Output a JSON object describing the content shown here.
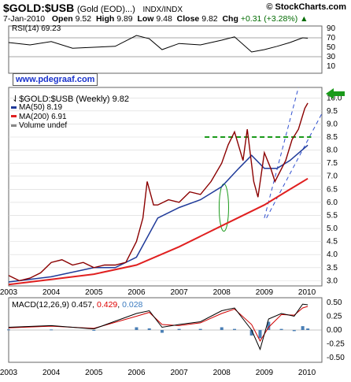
{
  "header": {
    "symbol": "$GOLD:$USB",
    "name": "(Gold (EOD)...)",
    "exchange": "INDX/INDX",
    "brand": "© StockCharts.com",
    "date": "7-Jan-2010",
    "open_label": "Open",
    "open": "9.52",
    "high_label": "High",
    "high": "9.89",
    "low_label": "Low",
    "low": "9.48",
    "close_label": "Close",
    "close": "9.82",
    "chg_label": "Chg",
    "chg": "+0.31 (+3.28%)",
    "chg_arrow": "▲"
  },
  "url": "www.pdegraaf.com",
  "colors": {
    "price": "#8b0000",
    "ma50": "#1f3a99",
    "ma200": "#e02020",
    "support": "#1a9a1a",
    "trend": "#3050d0",
    "macd": "#000000",
    "signal": "#d00000",
    "hist": "#4a7fb5",
    "arrow": "#1a9a1a",
    "axis": "#444444",
    "grid": "#d8d8d8"
  },
  "rsi": {
    "label": "RSI(14) 69.23",
    "levels": [
      90,
      70,
      50,
      30,
      10
    ]
  },
  "main": {
    "label": "$GOLD:$USB (Weekly) 9.82",
    "legend": [
      {
        "label": "MA(50) 8.19",
        "color": "#1f3a99"
      },
      {
        "label": "MA(200) 6.91",
        "color": "#e02020"
      },
      {
        "label": "Volume undef",
        "color": "#888888"
      }
    ],
    "y_ticks": [
      "3.0",
      "3.5",
      "4.0",
      "4.5",
      "5.0",
      "5.5",
      "6.0",
      "6.5",
      "7.0",
      "7.5",
      "8.0",
      "8.5",
      "9.0",
      "9.5",
      "10.0"
    ]
  },
  "macd": {
    "label_name": "MACD(12,26,9)",
    "macd_value": "0.457",
    "signal_value": "0.429",
    "hist_value": "0.028",
    "y_ticks": [
      "0.50",
      "0.25",
      "0.00",
      "-0.25",
      "-0.50"
    ]
  },
  "x_labels": [
    "2003",
    "2004",
    "2005",
    "2006",
    "2007",
    "2008",
    "2009",
    "2010"
  ],
  "chart_data": {
    "type": "line",
    "series": [
      {
        "name": "$GOLD:$USB (Weekly)",
        "x": [
          2003.0,
          2003.25,
          2003.5,
          2003.75,
          2004.0,
          2004.25,
          2004.5,
          2004.75,
          2005.0,
          2005.25,
          2005.5,
          2005.75,
          2006.0,
          2006.15,
          2006.25,
          2006.4,
          2006.5,
          2006.75,
          2007.0,
          2007.25,
          2007.5,
          2007.75,
          2008.0,
          2008.15,
          2008.3,
          2008.5,
          2008.6,
          2008.75,
          2008.85,
          2009.0,
          2009.15,
          2009.25,
          2009.5,
          2009.65,
          2009.8,
          2009.95,
          2010.02
        ],
        "values": [
          3.2,
          3.0,
          3.1,
          3.3,
          3.7,
          3.8,
          3.6,
          3.7,
          3.5,
          3.6,
          3.6,
          3.7,
          4.5,
          5.4,
          6.8,
          5.9,
          5.9,
          6.1,
          6.0,
          6.4,
          6.3,
          6.8,
          7.5,
          8.2,
          8.7,
          7.6,
          8.8,
          6.8,
          6.2,
          7.9,
          7.3,
          6.8,
          7.6,
          8.4,
          8.8,
          9.6,
          9.8
        ]
      },
      {
        "name": "MA(50)",
        "x": [
          2003.0,
          2004.0,
          2005.0,
          2005.5,
          2006.0,
          2006.5,
          2007.0,
          2007.5,
          2008.0,
          2008.4,
          2008.7,
          2009.0,
          2009.3,
          2009.6,
          2010.02
        ],
        "values": [
          2.95,
          3.15,
          3.5,
          3.5,
          3.9,
          5.4,
          5.8,
          6.1,
          6.6,
          7.3,
          7.8,
          7.3,
          7.3,
          7.6,
          8.19
        ]
      },
      {
        "name": "MA(200)",
        "x": [
          2003.0,
          2004.0,
          2005.0,
          2006.0,
          2007.0,
          2008.0,
          2009.0,
          2009.5,
          2010.02
        ],
        "values": [
          2.85,
          3.05,
          3.25,
          3.6,
          4.3,
          5.1,
          5.9,
          6.4,
          6.91
        ]
      }
    ],
    "rsi": {
      "x": [
        2003.0,
        2003.5,
        2004.0,
        2004.5,
        2005.0,
        2005.5,
        2006.0,
        2006.3,
        2006.6,
        2007.0,
        2007.5,
        2008.0,
        2008.3,
        2008.7,
        2009.0,
        2009.3,
        2009.6,
        2009.9,
        2010.02
      ],
      "values": [
        60,
        55,
        62,
        48,
        50,
        52,
        75,
        68,
        45,
        58,
        55,
        65,
        72,
        40,
        45,
        52,
        60,
        70,
        69.23
      ]
    },
    "macd": {
      "x": [
        2003.0,
        2004.0,
        2005.0,
        2006.0,
        2006.3,
        2006.6,
        2007.0,
        2007.5,
        2008.0,
        2008.3,
        2008.7,
        2008.9,
        2009.1,
        2009.4,
        2009.7,
        2009.9,
        2010.02
      ],
      "macd": [
        0.05,
        0.08,
        0.02,
        0.3,
        0.35,
        0.05,
        0.1,
        0.15,
        0.35,
        0.4,
        0.0,
        -0.35,
        0.2,
        0.3,
        0.25,
        0.47,
        0.457
      ],
      "signal": [
        0.04,
        0.07,
        0.03,
        0.25,
        0.32,
        0.1,
        0.08,
        0.13,
        0.3,
        0.38,
        0.1,
        -0.2,
        0.05,
        0.28,
        0.27,
        0.4,
        0.429
      ]
    },
    "annotations": {
      "support_level": 8.5,
      "ellipse_center": {
        "x": 2008.05,
        "y": 5.8
      }
    },
    "ylim": [
      2.8,
      10.4
    ],
    "xlim": [
      2003.0,
      2010.35
    ]
  }
}
